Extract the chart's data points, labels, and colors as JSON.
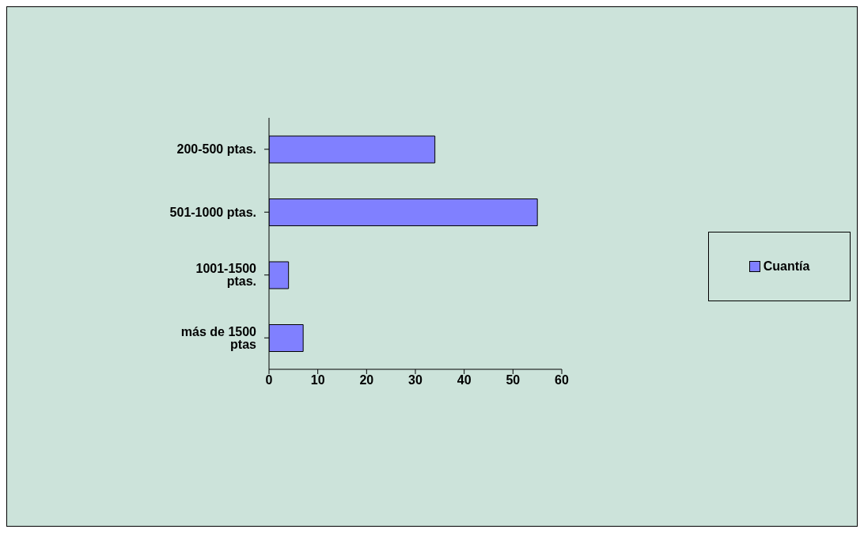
{
  "chart_data": {
    "type": "bar",
    "orientation": "horizontal",
    "categories": [
      "200-500 ptas.",
      "501-1000 ptas.",
      "1001-1500 ptas.",
      "más de 1500 ptas"
    ],
    "series": [
      {
        "name": "Cuantía",
        "color": "#8080ff",
        "values": [
          34,
          55,
          4,
          7
        ]
      }
    ],
    "xlim": [
      0,
      60
    ],
    "xticks": [
      0,
      10,
      20,
      30,
      40,
      50,
      60
    ],
    "grid": false,
    "legend": "right"
  }
}
